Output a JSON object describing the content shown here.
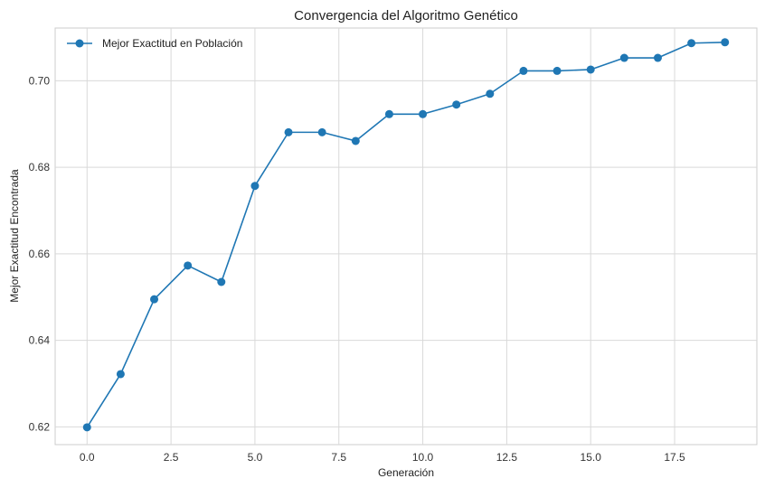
{
  "chart_data": {
    "type": "line",
    "title": "Convergencia del Algoritmo Genético",
    "xlabel": "Generación",
    "ylabel": "Mejor Exactitud Encontrada",
    "xlim": [
      -0.95,
      19.95
    ],
    "ylim": [
      0.6159,
      0.7122
    ],
    "x_ticks": [
      0.0,
      2.5,
      5.0,
      7.5,
      10.0,
      12.5,
      15.0,
      17.5
    ],
    "x_tick_labels": [
      "0.0",
      "2.5",
      "5.0",
      "7.5",
      "10.0",
      "12.5",
      "15.0",
      "17.5"
    ],
    "y_ticks": [
      0.62,
      0.64,
      0.66,
      0.68,
      0.7
    ],
    "y_tick_labels": [
      "0.62",
      "0.64",
      "0.66",
      "0.68",
      "0.70"
    ],
    "grid": true,
    "legend_position": "top-left",
    "series": [
      {
        "name": "Mejor Exactitud en Población",
        "color": "#1f77b4",
        "marker": "circle",
        "x": [
          0,
          1,
          2,
          3,
          4,
          5,
          6,
          7,
          8,
          9,
          10,
          11,
          12,
          13,
          14,
          15,
          16,
          17,
          18,
          19
        ],
        "values": [
          0.6199,
          0.6322,
          0.6495,
          0.6573,
          0.6535,
          0.6757,
          0.6881,
          0.6881,
          0.6861,
          0.6923,
          0.6923,
          0.6945,
          0.697,
          0.7023,
          0.7023,
          0.7026,
          0.7053,
          0.7053,
          0.7087,
          0.7089
        ]
      }
    ]
  }
}
